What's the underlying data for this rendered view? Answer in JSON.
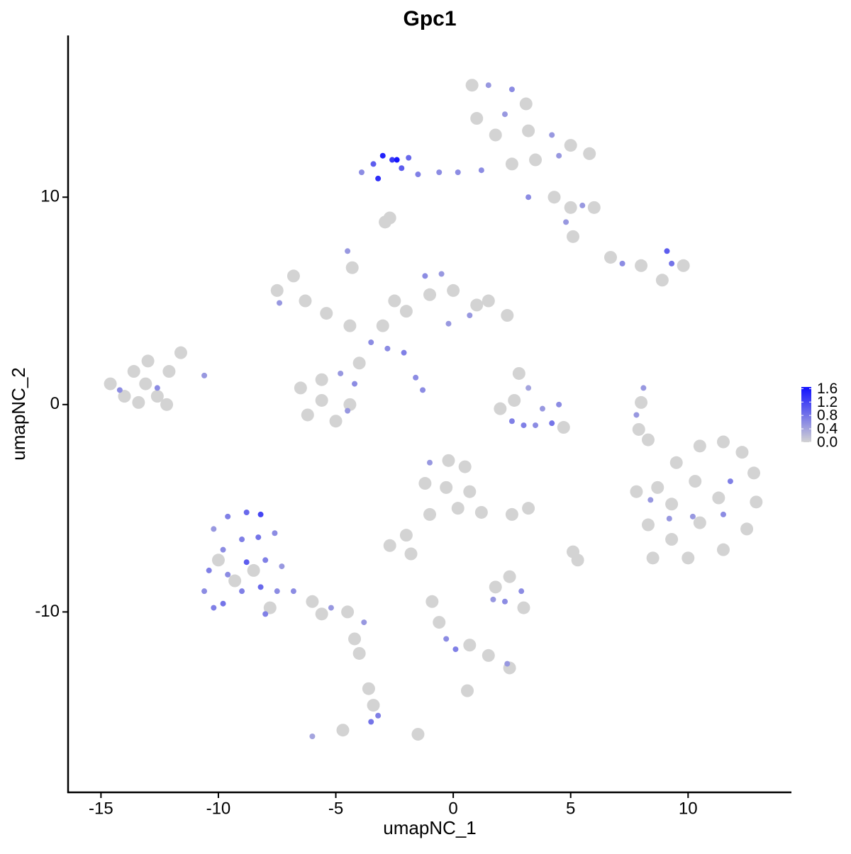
{
  "chart_data": {
    "type": "scatter",
    "title": "Gpc1",
    "x_label": "umapNC_1",
    "y_label": "umapNC_2",
    "xlim": [
      -16.4,
      14.4
    ],
    "ylim": [
      -18.7,
      17.8
    ],
    "xticks": [
      -15,
      -10,
      -5,
      0,
      5,
      10
    ],
    "yticks": [
      -10,
      0,
      10
    ],
    "grid": false,
    "color_low": "#d3d3d3",
    "color_high": "#1010ff",
    "clim": [
      0,
      1.65
    ],
    "colorbar_ticks": [
      {
        "value": 0,
        "label": "0.0"
      },
      0.4,
      0.8,
      1.2,
      1.6
    ],
    "x": [
      -14.6,
      -14.0,
      -13.6,
      -13.1,
      -12.6,
      -12.1,
      -11.6,
      -13.4,
      -14.2,
      -12.6,
      -10.6,
      -12.2,
      -13.0,
      -10.2,
      -9.6,
      -8.8,
      -8.2,
      -9.8,
      -9.0,
      -8.3,
      -7.6,
      -10.4,
      -9.6,
      -8.8,
      -8.0,
      -7.3,
      -10.6,
      -9.8,
      -9.0,
      -8.2,
      -7.5,
      -8.0,
      -10.2,
      -9.3,
      -8.5,
      -10.0,
      -7.8,
      -6.8,
      -6.0,
      -5.2,
      -4.5,
      -3.8,
      -5.6,
      -4.2,
      -4.0,
      -3.6,
      -3.4,
      -3.2,
      -3.5,
      -6.0,
      -4.7,
      -6.5,
      -5.6,
      -5.0,
      -4.4,
      -6.2,
      -5.6,
      -4.8,
      -4.2,
      -4.5,
      -4.0,
      -3.5,
      -2.8,
      -2.1,
      -1.6,
      -1.3,
      -3.0,
      -4.4,
      -5.4,
      -6.3,
      -7.5,
      -7.4,
      -6.8,
      -4.5,
      -4.3,
      -2.0,
      -1.0,
      -1.2,
      0.0,
      1.0,
      2.3,
      0.7,
      -0.2,
      1.5,
      -0.5,
      -2.5,
      0.8,
      1.5,
      2.5,
      3.1,
      2.2,
      1.0,
      1.8,
      3.2,
      4.2,
      5.0,
      5.8,
      4.5,
      3.5,
      2.5,
      1.2,
      0.2,
      -0.6,
      -1.5,
      -2.2,
      -2.6,
      -3.0,
      -3.4,
      -3.2,
      -2.4,
      -1.9,
      -3.9,
      3.2,
      4.3,
      5.0,
      5.5,
      6.0,
      4.8,
      5.1,
      -2.7,
      -2.9,
      6.7,
      7.2,
      8.0,
      9.1,
      9.3,
      9.8,
      8.9,
      8.1,
      8.0,
      7.8,
      7.9,
      8.3,
      8.7,
      9.5,
      10.5,
      11.5,
      12.3,
      12.8,
      12.9,
      12.5,
      11.5,
      10.0,
      8.5,
      8.3,
      9.3,
      10.3,
      11.3,
      10.5,
      9.3,
      11.8,
      11.5,
      9.2,
      10.2,
      8.4,
      7.8,
      2.8,
      3.2,
      2.6,
      3.8,
      4.5,
      2.5,
      3.0,
      3.5,
      4.2,
      2.0,
      4.7,
      -1.0,
      -0.2,
      0.5,
      -1.2,
      -0.3,
      0.7,
      1.2,
      0.2,
      -1.0,
      -2.0,
      -2.7,
      -1.8,
      2.5,
      3.2,
      5.1,
      5.3,
      1.8,
      2.4,
      2.9,
      2.2,
      1.7,
      3.0,
      -0.9,
      -0.6,
      -0.3,
      0.1,
      0.7,
      1.5,
      2.3,
      2.4,
      0.6,
      -1.5
    ],
    "y": [
      1.0,
      0.4,
      1.6,
      1.0,
      0.4,
      1.6,
      2.5,
      0.1,
      0.7,
      0.8,
      1.4,
      0.0,
      2.1,
      -6.0,
      -5.4,
      -5.2,
      -5.3,
      -7.0,
      -6.5,
      -6.4,
      -6.2,
      -8.0,
      -8.2,
      -7.6,
      -7.5,
      -7.8,
      -9.0,
      -9.6,
      -9.0,
      -8.8,
      -9.0,
      -10.1,
      -9.8,
      -8.5,
      -8.0,
      -7.5,
      -9.8,
      -9.0,
      -9.5,
      -9.8,
      -10.0,
      -10.5,
      -10.1,
      -11.3,
      -12.0,
      -13.7,
      -14.5,
      -15.0,
      -15.3,
      -16.0,
      -15.7,
      0.8,
      0.2,
      -0.8,
      0.0,
      -0.5,
      1.2,
      1.5,
      1.0,
      -0.3,
      2.0,
      3.0,
      2.7,
      2.5,
      1.3,
      0.7,
      3.8,
      3.8,
      4.4,
      5.0,
      5.5,
      4.9,
      6.2,
      7.4,
      6.6,
      4.5,
      5.3,
      6.2,
      5.5,
      4.8,
      4.3,
      4.3,
      3.9,
      5.0,
      6.3,
      5.0,
      15.4,
      15.4,
      15.2,
      14.5,
      14.0,
      13.8,
      13.0,
      13.2,
      13.0,
      12.5,
      12.1,
      12.0,
      11.8,
      11.6,
      11.3,
      11.2,
      11.2,
      11.1,
      11.4,
      11.8,
      12.0,
      11.6,
      10.9,
      11.8,
      11.9,
      11.2,
      10.0,
      10.0,
      9.5,
      9.6,
      9.5,
      8.8,
      8.1,
      9.0,
      8.8,
      7.1,
      6.8,
      6.7,
      7.4,
      6.8,
      6.7,
      6.0,
      0.8,
      0.1,
      -0.5,
      -1.2,
      -1.7,
      -4.0,
      -2.8,
      -2.0,
      -1.8,
      -2.3,
      -3.3,
      -4.7,
      -6.0,
      -7.0,
      -7.4,
      -7.4,
      -5.8,
      -4.8,
      -3.7,
      -4.5,
      -5.7,
      -6.5,
      -3.7,
      -5.3,
      -5.5,
      -5.4,
      -4.6,
      -4.2,
      1.5,
      0.8,
      0.2,
      -0.2,
      0.0,
      -0.8,
      -1.0,
      -1.0,
      -0.9,
      -0.2,
      -1.1,
      -2.8,
      -2.7,
      -3.0,
      -3.8,
      -4.0,
      -4.2,
      -5.2,
      -5.0,
      -5.3,
      -6.3,
      -6.8,
      -7.2,
      -5.3,
      -5.0,
      -7.1,
      -7.5,
      -8.8,
      -8.3,
      -9.0,
      -9.5,
      -9.4,
      -9.8,
      -9.5,
      -10.5,
      -11.3,
      -11.8,
      -11.6,
      -12.1,
      -12.5,
      -12.7,
      -13.8,
      -15.9
    ],
    "values": [
      0,
      0,
      0,
      0,
      0,
      0,
      0,
      0,
      0.6,
      0.6,
      0.5,
      0,
      0,
      0.5,
      0.7,
      0.9,
      1.2,
      0.6,
      0.7,
      0.8,
      0.6,
      0.7,
      0.6,
      1.0,
      0.7,
      0.5,
      0.6,
      0.8,
      0.7,
      0.9,
      0.6,
      0.7,
      0.7,
      0,
      0,
      0,
      0,
      0.6,
      0,
      0.5,
      0,
      0.5,
      0,
      0,
      0,
      0,
      0,
      0.7,
      0.8,
      0.4,
      0,
      0,
      0,
      0,
      0,
      0,
      0,
      0.5,
      0.6,
      0.5,
      0,
      0.6,
      0.6,
      0.7,
      0.6,
      0.6,
      0,
      0,
      0,
      0,
      0,
      0.5,
      0,
      0.5,
      0,
      0,
      0,
      0.6,
      0,
      0,
      0,
      0.5,
      0.5,
      0,
      0.5,
      0,
      0,
      0.5,
      0.6,
      0,
      0.5,
      0,
      0,
      0,
      0.5,
      0,
      0,
      0.5,
      0,
      0,
      0.6,
      0.6,
      0.6,
      0.7,
      1.0,
      1.3,
      1.5,
      1.0,
      1.4,
      1.6,
      0.9,
      0.6,
      0.6,
      0,
      0,
      0.5,
      0,
      0.5,
      0,
      0,
      0,
      0,
      0.6,
      0,
      1.0,
      0.8,
      0,
      0,
      0.5,
      0,
      0.5,
      0,
      0,
      0,
      0,
      0,
      0,
      0,
      0,
      0,
      0,
      0,
      0,
      0,
      0,
      0,
      0,
      0,
      0,
      0,
      0.7,
      0.6,
      0.5,
      0.5,
      0.5,
      0,
      0,
      0.4,
      0,
      0.5,
      0.6,
      0.7,
      0.7,
      0.6,
      0.8,
      0,
      0,
      0.5,
      0,
      0,
      0,
      0,
      0,
      0,
      0,
      0,
      0,
      0,
      0,
      0,
      0,
      0,
      0,
      0,
      0,
      0.6,
      0.6,
      0.5,
      0,
      0,
      0,
      0.6,
      0.7,
      0,
      0,
      0.5,
      0,
      0,
      0
    ]
  }
}
